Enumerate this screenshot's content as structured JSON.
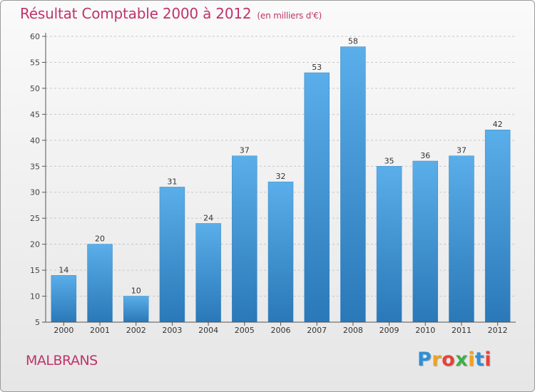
{
  "title": "Résultat Comptable 2000 à 2012",
  "subtitle": "(en milliers d'€)",
  "commune": "MALBRANS",
  "logo": {
    "text": "Proxiti",
    "letters": [
      "P",
      "r",
      "o",
      "x",
      "i",
      "t",
      "i"
    ],
    "colors": [
      "#2f8fd6",
      "#f0a21e",
      "#e8413a",
      "#3fae49",
      "#f0a21e",
      "#2f8fd6",
      "#e8413a"
    ]
  },
  "colors": {
    "bar_top": "#5aaee9",
    "bar_bottom": "#2a78b8",
    "title": "#c0336a"
  },
  "chart_data": {
    "type": "bar",
    "title": "Résultat Comptable 2000 à 2012",
    "subtitle": "(en milliers d'€)",
    "xlabel": "",
    "ylabel": "",
    "categories": [
      "2000",
      "2001",
      "2002",
      "2003",
      "2004",
      "2005",
      "2006",
      "2007",
      "2008",
      "2009",
      "2010",
      "2011",
      "2012"
    ],
    "values": [
      14,
      20,
      10,
      31,
      24,
      37,
      32,
      53,
      58,
      35,
      36,
      37,
      42
    ],
    "ylim": [
      5,
      60
    ],
    "yticks": [
      5,
      10,
      15,
      20,
      25,
      30,
      35,
      40,
      45,
      50,
      55,
      60
    ],
    "grid": true
  }
}
